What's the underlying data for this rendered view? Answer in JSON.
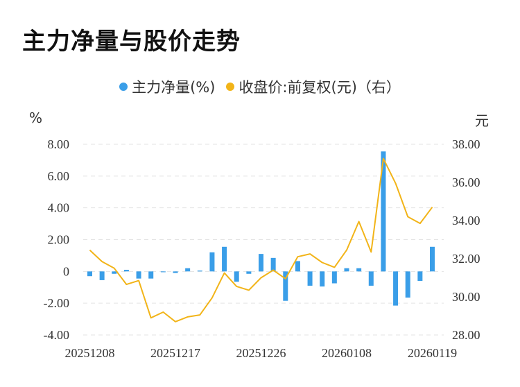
{
  "title": "主力净量与股价走势",
  "colors": {
    "bar": "#3a9ee8",
    "line": "#f2b418",
    "grid": "#e3e3e3"
  },
  "legend": [
    {
      "label": "主力净量(%)",
      "color": "#3a9ee8"
    },
    {
      "label": "收盘价:前复权(元)（右）",
      "color": "#f2b418"
    }
  ],
  "chart_data": {
    "type": "bar+line",
    "left_unit": "%",
    "right_unit": "元",
    "y_left": {
      "min": -4,
      "max": 8,
      "ticks": [
        "8.00",
        "6.00",
        "4.00",
        "2.00",
        "0",
        "-2.00",
        "-4.00"
      ],
      "tick_values": [
        8,
        6,
        4,
        2,
        0,
        -2,
        -4
      ]
    },
    "y_right": {
      "min": 28,
      "max": 38,
      "ticks": [
        "38.00",
        "36.00",
        "34.00",
        "32.00",
        "30.00",
        "28.00"
      ],
      "tick_values": [
        38,
        36,
        34,
        32,
        30,
        28
      ]
    },
    "x_tick_labels": [
      {
        "index": 0,
        "label": "20251208"
      },
      {
        "index": 7,
        "label": "20251217"
      },
      {
        "index": 14,
        "label": "20251226"
      },
      {
        "index": 21,
        "label": "20260108"
      },
      {
        "index": 28,
        "label": "20260119"
      }
    ],
    "grid": true,
    "legend_position": "top",
    "series": [
      {
        "name": "主力净量(%)",
        "type": "bar",
        "axis": "left",
        "values": [
          -0.3,
          -0.55,
          -0.15,
          0.1,
          -0.45,
          -0.45,
          -0.05,
          -0.1,
          0.2,
          0.05,
          1.2,
          1.55,
          -0.65,
          -0.15,
          1.1,
          0.85,
          -1.85,
          0.65,
          -0.9,
          -0.95,
          -0.75,
          0.2,
          0.2,
          -0.9,
          7.55,
          -2.15,
          -1.65,
          -0.6,
          1.55
        ]
      },
      {
        "name": "收盘价:前复权(元)（右）",
        "type": "line",
        "axis": "right",
        "values": [
          32.45,
          31.85,
          31.5,
          30.65,
          30.85,
          28.9,
          29.2,
          28.7,
          28.95,
          29.05,
          29.95,
          31.25,
          30.55,
          30.35,
          31.0,
          31.4,
          30.95,
          32.1,
          32.25,
          31.8,
          31.55,
          32.45,
          33.95,
          32.35,
          37.25,
          35.95,
          34.2,
          33.85,
          34.7
        ]
      }
    ]
  }
}
